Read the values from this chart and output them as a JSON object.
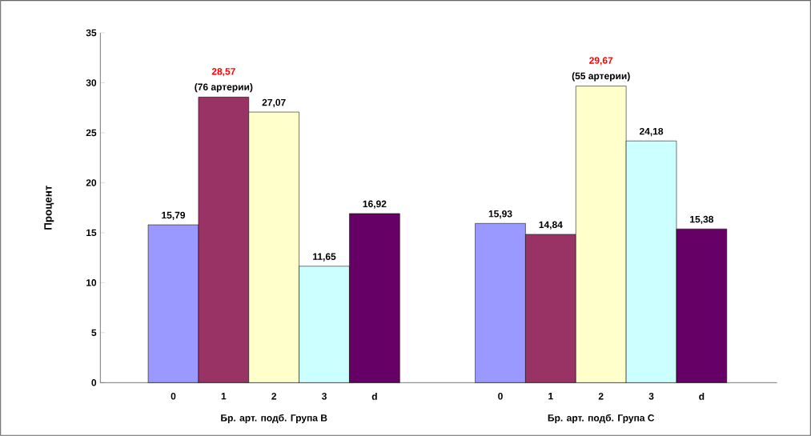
{
  "chart_data": {
    "type": "bar",
    "ylabel": "Процент",
    "categories": [
      "0",
      "1",
      "2",
      "3",
      "d",
      "0",
      "1",
      "2",
      "3",
      "d"
    ],
    "values": [
      15.79,
      28.57,
      27.07,
      11.65,
      16.92,
      15.93,
      14.84,
      29.67,
      24.18,
      15.38
    ],
    "colors": [
      "#9999ff",
      "#993366",
      "#ffffcc",
      "#ccffff",
      "#660066",
      "#9999ff",
      "#993366",
      "#ffffcc",
      "#ccffff",
      "#660066"
    ],
    "value_labels": [
      "15,79",
      "28,57",
      "27,07",
      "11,65",
      "16,92",
      "15,93",
      "14,84",
      "29,67",
      "24,18",
      "15,38"
    ],
    "annotations": [
      "Бр. арт. подб. Група B",
      "Бр. арт. подб. Група C",
      "(76 артерии)",
      "(55 артерии)"
    ],
    "ylim": [
      0,
      35
    ],
    "yticks": [
      0,
      5,
      10,
      15,
      20,
      25,
      30,
      35
    ],
    "grid": false
  }
}
